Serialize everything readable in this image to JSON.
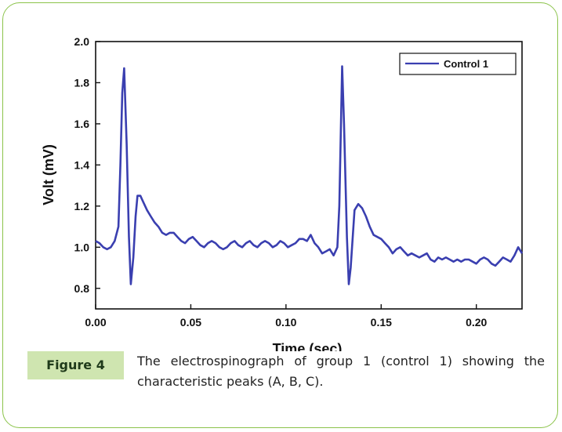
{
  "chart_data": {
    "type": "line",
    "xlabel": "Time (sec)",
    "ylabel": "Volt (mV)",
    "xlim": [
      0.0,
      0.224
    ],
    "ylim": [
      0.7,
      2.0
    ],
    "x_ticks": [
      "0.00",
      "0.05",
      "0.10",
      "0.15",
      "0.20"
    ],
    "x_tick_values": [
      0.0,
      0.05,
      0.1,
      0.15,
      0.2
    ],
    "y_ticks": [
      "0.8",
      "1.0",
      "1.2",
      "1.4",
      "1.6",
      "1.8",
      "2.0"
    ],
    "y_tick_values": [
      0.8,
      1.0,
      1.2,
      1.4,
      1.6,
      1.8,
      2.0
    ],
    "grid": false,
    "legend_position": "top-right",
    "series": [
      {
        "name": "Control 1",
        "color": "#3a3fb0",
        "x": [
          0.0,
          0.002,
          0.004,
          0.006,
          0.008,
          0.01,
          0.012,
          0.013,
          0.014,
          0.015,
          0.0163,
          0.0175,
          0.0185,
          0.0198,
          0.021,
          0.022,
          0.0235,
          0.025,
          0.027,
          0.029,
          0.031,
          0.033,
          0.035,
          0.037,
          0.039,
          0.041,
          0.043,
          0.045,
          0.047,
          0.049,
          0.051,
          0.053,
          0.055,
          0.057,
          0.059,
          0.061,
          0.063,
          0.065,
          0.067,
          0.069,
          0.071,
          0.073,
          0.075,
          0.077,
          0.079,
          0.081,
          0.083,
          0.085,
          0.087,
          0.089,
          0.091,
          0.093,
          0.095,
          0.097,
          0.099,
          0.101,
          0.103,
          0.105,
          0.107,
          0.109,
          0.111,
          0.113,
          0.115,
          0.117,
          0.119,
          0.121,
          0.123,
          0.125,
          0.127,
          0.128,
          0.1295,
          0.1305,
          0.132,
          0.133,
          0.134,
          0.136,
          0.138,
          0.14,
          0.142,
          0.144,
          0.146,
          0.148,
          0.15,
          0.152,
          0.154,
          0.156,
          0.158,
          0.16,
          0.162,
          0.164,
          0.166,
          0.168,
          0.17,
          0.172,
          0.174,
          0.176,
          0.178,
          0.18,
          0.182,
          0.184,
          0.186,
          0.188,
          0.19,
          0.192,
          0.194,
          0.196,
          0.198,
          0.2,
          0.202,
          0.204,
          0.206,
          0.208,
          0.21,
          0.212,
          0.214,
          0.216,
          0.218,
          0.22,
          0.222,
          0.224
        ],
        "y": [
          1.03,
          1.02,
          1.0,
          0.99,
          1.0,
          1.03,
          1.1,
          1.4,
          1.75,
          1.87,
          1.5,
          1.05,
          0.82,
          0.95,
          1.15,
          1.25,
          1.25,
          1.22,
          1.18,
          1.15,
          1.12,
          1.1,
          1.07,
          1.06,
          1.07,
          1.07,
          1.05,
          1.03,
          1.02,
          1.04,
          1.05,
          1.03,
          1.01,
          1.0,
          1.02,
          1.03,
          1.02,
          1.0,
          0.99,
          1.0,
          1.02,
          1.03,
          1.01,
          1.0,
          1.02,
          1.03,
          1.01,
          1.0,
          1.02,
          1.03,
          1.02,
          1.0,
          1.01,
          1.03,
          1.02,
          1.0,
          1.01,
          1.02,
          1.04,
          1.04,
          1.03,
          1.06,
          1.02,
          1.0,
          0.97,
          0.98,
          0.99,
          0.96,
          1.0,
          1.2,
          1.88,
          1.6,
          1.05,
          0.82,
          0.9,
          1.18,
          1.21,
          1.19,
          1.15,
          1.1,
          1.06,
          1.05,
          1.04,
          1.02,
          1.0,
          0.97,
          0.99,
          1.0,
          0.98,
          0.96,
          0.97,
          0.96,
          0.95,
          0.96,
          0.97,
          0.94,
          0.93,
          0.95,
          0.94,
          0.95,
          0.94,
          0.93,
          0.94,
          0.93,
          0.94,
          0.94,
          0.93,
          0.92,
          0.94,
          0.95,
          0.94,
          0.92,
          0.91,
          0.93,
          0.95,
          0.94,
          0.93,
          0.96,
          1.0,
          0.97
        ]
      }
    ]
  },
  "caption": {
    "label": "Figure 4",
    "text": "The electrospinograph of group 1 (control 1) showing the characteristic peaks (A, B, C)."
  }
}
